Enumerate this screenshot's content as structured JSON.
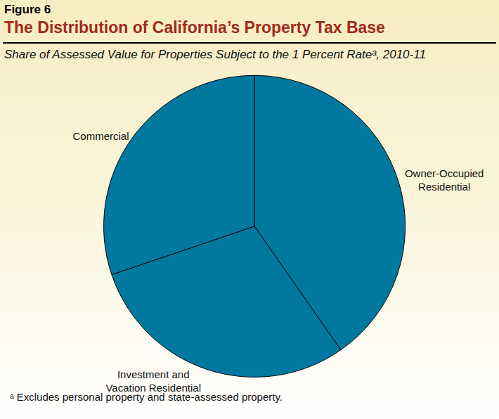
{
  "chart_data": {
    "type": "pie",
    "figure_label": "Figure 6",
    "title": "The Distribution of California’s Property Tax Base",
    "subtitle": "Share of Assessed Value for Properties Subject to the 1 Percent Rateᵃ, 2010-11",
    "categories": [
      "Owner-Occupied Residential",
      "Investment and Vacation Residential",
      "Commercial"
    ],
    "values": [
      40.3,
      29.5,
      30.2
    ],
    "colors": [
      "#00789f",
      "#00789f",
      "#00789f"
    ],
    "data_labels": false,
    "annotations": [
      "ᵃ Excludes personal property and state-assessed property."
    ]
  }
}
